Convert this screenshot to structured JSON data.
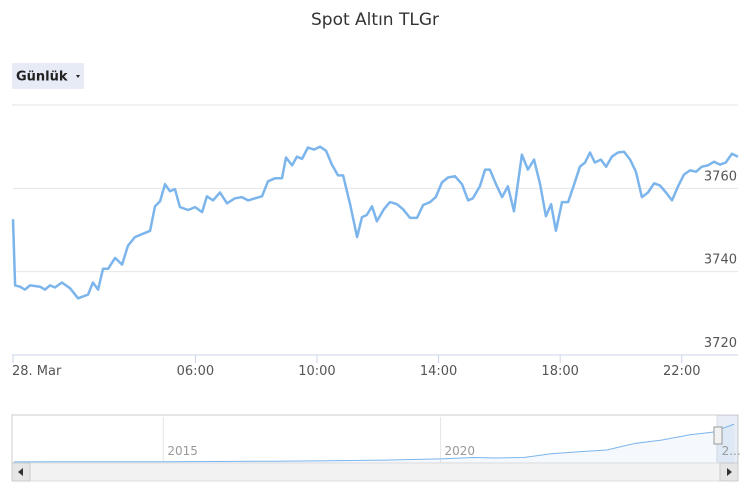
{
  "chart_data": [
    {
      "type": "line",
      "title": "Spot Altın TLGr",
      "range_selector": "Günlük",
      "color": "#7cb5ec",
      "x": [
        0,
        0.07,
        0.23,
        0.39,
        0.56,
        0.89,
        1.05,
        1.22,
        1.38,
        1.61,
        1.88,
        2.14,
        2.47,
        2.63,
        2.8,
        2.96,
        3.13,
        3.36,
        3.59,
        3.78,
        4.01,
        4.24,
        4.51,
        4.67,
        4.84,
        5.0,
        5.16,
        5.33,
        5.49,
        5.76,
        5.99,
        6.22,
        6.38,
        6.58,
        6.81,
        7.04,
        7.3,
        7.53,
        7.73,
        7.96,
        8.19,
        8.39,
        8.62,
        8.85,
        8.98,
        9.18,
        9.34,
        9.51,
        9.7,
        9.9,
        10.1,
        10.3,
        10.49,
        10.69,
        10.86,
        11.09,
        11.32,
        11.48,
        11.64,
        11.81,
        11.97,
        12.2,
        12.4,
        12.63,
        12.83,
        13.06,
        13.29,
        13.49,
        13.72,
        13.91,
        14.11,
        14.31,
        14.54,
        14.77,
        14.97,
        15.13,
        15.36,
        15.53,
        15.69,
        15.89,
        16.09,
        16.28,
        16.48,
        16.74,
        16.94,
        17.14,
        17.34,
        17.53,
        17.7,
        17.86,
        18.06,
        18.26,
        18.45,
        18.65,
        18.82,
        18.98,
        19.14,
        19.34,
        19.51,
        19.7,
        19.9,
        20.1,
        20.3,
        20.49,
        20.69,
        20.89,
        21.09,
        21.28,
        21.48,
        21.68,
        21.88,
        22.07,
        22.27,
        22.47,
        22.66,
        22.86,
        23.06,
        23.26,
        23.45,
        23.65,
        23.85
      ],
      "values": [
        3752.6,
        3736.7,
        3736.4,
        3735.7,
        3736.7,
        3736.4,
        3735.7,
        3736.7,
        3736.2,
        3737.4,
        3736,
        3733.6,
        3734.5,
        3737.4,
        3735.7,
        3740.7,
        3740.7,
        3743.3,
        3741.7,
        3746.2,
        3748.3,
        3749,
        3749.8,
        3755.7,
        3756.9,
        3761,
        3759.3,
        3759.8,
        3755.5,
        3754.8,
        3755.5,
        3754.3,
        3758.1,
        3757.1,
        3759,
        3756.4,
        3757.6,
        3757.9,
        3757.1,
        3757.6,
        3758.1,
        3761.7,
        3762.4,
        3762.4,
        3767.4,
        3765.5,
        3767.6,
        3767.1,
        3769.8,
        3769.3,
        3770,
        3769,
        3765.7,
        3763.1,
        3763.1,
        3756.2,
        3748.3,
        3753.1,
        3753.6,
        3755.7,
        3752.1,
        3755,
        3756.7,
        3756.2,
        3755,
        3752.9,
        3752.9,
        3756,
        3756.7,
        3757.9,
        3761.4,
        3762.6,
        3762.9,
        3761,
        3757.1,
        3757.6,
        3760.5,
        3764.5,
        3764.5,
        3761,
        3757.9,
        3760.5,
        3754.5,
        3768.1,
        3764.5,
        3766.9,
        3761,
        3753.3,
        3756.2,
        3749.8,
        3756.7,
        3756.7,
        3760.7,
        3765.2,
        3766.2,
        3768.6,
        3766.2,
        3766.9,
        3765.2,
        3767.6,
        3768.6,
        3768.8,
        3766.9,
        3764,
        3757.9,
        3759,
        3761.2,
        3760.7,
        3759,
        3757.1,
        3760.5,
        3763.3,
        3764.3,
        3764,
        3765.2,
        3765.5,
        3766.4,
        3765.7,
        3766.2,
        3768.3,
        3767.6
      ],
      "xlim": [
        0,
        23.85
      ],
      "xticks": [
        {
          "value": 0,
          "label": "28. Mar"
        },
        {
          "value": 6,
          "label": "06:00"
        },
        {
          "value": 10,
          "label": "10:00"
        },
        {
          "value": 14,
          "label": "14:00"
        },
        {
          "value": 18,
          "label": "18:00"
        },
        {
          "value": 22,
          "label": "22:00"
        }
      ],
      "ylim": [
        3720,
        3780
      ],
      "yticks": [
        3720,
        3740,
        3760
      ],
      "grid": true
    },
    {
      "type": "area",
      "color": "#7cb5ec",
      "x": [
        2012.3,
        2013,
        2014,
        2015,
        2016,
        2017,
        2018,
        2019,
        2020,
        2020.6,
        2021,
        2021.5,
        2022,
        2022.5,
        2023,
        2023.5,
        2024,
        2024.5,
        2024.9,
        2025.3
      ],
      "values": [
        95,
        100,
        100,
        105,
        125,
        150,
        190,
        250,
        350,
        470,
        420,
        470,
        790,
        950,
        1100,
        1650,
        1950,
        2400,
        2600,
        3300
      ],
      "xlim": [
        2012.27,
        2025.35
      ],
      "ylim": [
        0,
        3900
      ],
      "xticks": [
        2015,
        2020,
        {
          "value": 2025,
          "label": "2..."
        }
      ]
    }
  ]
}
